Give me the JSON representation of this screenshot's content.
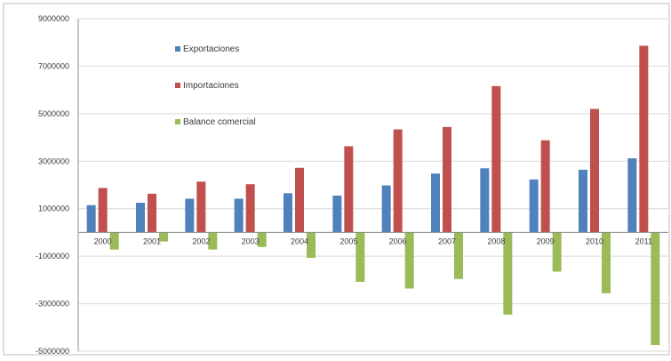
{
  "colors": {
    "exportaciones": "#4f81bd",
    "importaciones": "#c0504d",
    "balance": "#9bbb59",
    "grid": "#d9d9d9",
    "axis": "#8c8c8c"
  },
  "chart_data": {
    "type": "bar",
    "title": "",
    "xlabel": "",
    "ylabel": "",
    "categories": [
      "2000",
      "2001",
      "2002",
      "2003",
      "2004",
      "2005",
      "2006",
      "2007",
      "2008",
      "2009",
      "2010",
      "2011"
    ],
    "category_labels": [
      "2000",
      "2001",
      "2002",
      "2003",
      "2004",
      "2005",
      "2006",
      "2007",
      "2008",
      "2009",
      "2010",
      "2011"
    ],
    "y_ticks": [
      9000000,
      7000000,
      5000000,
      3000000,
      1000000,
      -1000000,
      -3000000,
      -5000000
    ],
    "y_tick_labels": [
      "9000000",
      "7000000",
      "5000000",
      "3000000",
      "1000000",
      "-1000000",
      "-3000000",
      "-5000000"
    ],
    "ylim": [
      -5000000,
      9000000
    ],
    "grid": true,
    "legend_position": "top-left",
    "series": [
      {
        "name": "Exportaciones",
        "color_key": "exportaciones",
        "values": [
          1150000,
          1250000,
          1420000,
          1420000,
          1650000,
          1550000,
          1980000,
          2480000,
          2700000,
          2230000,
          2640000,
          3120000
        ]
      },
      {
        "name": "Importaciones",
        "color_key": "importaciones",
        "values": [
          1870000,
          1630000,
          2140000,
          2030000,
          2720000,
          3630000,
          4340000,
          4440000,
          6160000,
          3880000,
          5200000,
          7860000
        ]
      },
      {
        "name": "Balance comercial",
        "color_key": "balance",
        "values": [
          -720000,
          -380000,
          -720000,
          -610000,
          -1070000,
          -2080000,
          -2360000,
          -1960000,
          -3460000,
          -1650000,
          -2560000,
          -4740000
        ]
      }
    ]
  }
}
